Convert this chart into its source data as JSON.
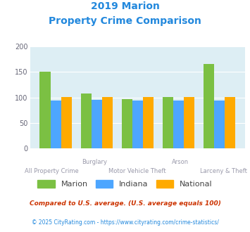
{
  "title_line1": "2019 Marion",
  "title_line2": "Property Crime Comparison",
  "categories": [
    "All Property Crime",
    "Burglary",
    "Motor Vehicle Theft",
    "Arson",
    "Larceny & Theft"
  ],
  "marion": [
    150,
    108,
    97,
    101,
    165
  ],
  "indiana": [
    94,
    95,
    94,
    94,
    94
  ],
  "national": [
    101,
    101,
    101,
    101,
    101
  ],
  "marion_color": "#7bc043",
  "indiana_color": "#4da6ff",
  "national_color": "#ffaa00",
  "bg_color": "#ddeef4",
  "title_color": "#2288dd",
  "xlabel_color": "#9999aa",
  "legend_label_color": "#444444",
  "footnote1": "Compared to U.S. average. (U.S. average equals 100)",
  "footnote2": "© 2025 CityRating.com - https://www.cityrating.com/crime-statistics/",
  "footnote1_color": "#cc3300",
  "footnote2_color": "#2288dd",
  "ylim": [
    0,
    200
  ],
  "yticks": [
    0,
    50,
    100,
    150,
    200
  ]
}
